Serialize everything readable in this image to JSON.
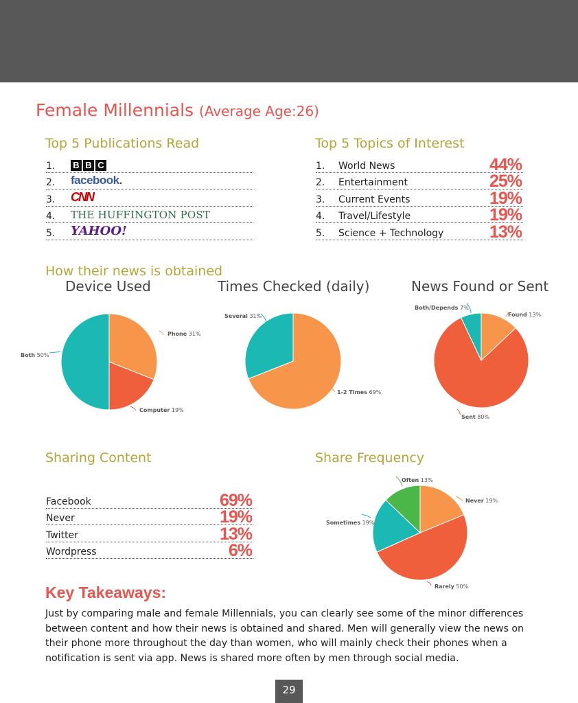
{
  "title": {
    "main": "Female Millennials",
    "sub": "(Average Age:26)"
  },
  "publications": {
    "heading": "Top 5 Publications Read",
    "items": [
      {
        "num": "1.",
        "logo_text": "BBC"
      },
      {
        "num": "2.",
        "logo_text": "facebook."
      },
      {
        "num": "3.",
        "logo_text": "CNN"
      },
      {
        "num": "4.",
        "logo_text": "THE HUFFINGTON POST"
      },
      {
        "num": "5.",
        "logo_text": "YAHOO!"
      }
    ]
  },
  "topics": {
    "heading": "Top 5 Topics of Interest",
    "items": [
      {
        "num": "1.",
        "label": "World News",
        "pct": "44%"
      },
      {
        "num": "2.",
        "label": "Entertainment",
        "pct": "25%"
      },
      {
        "num": "3.",
        "label": "Current Events",
        "pct": "19%"
      },
      {
        "num": "4.",
        "label": "Travel/Lifestyle",
        "pct": "19%"
      },
      {
        "num": "5.",
        "label": "Science + Technology",
        "pct": "13%"
      }
    ]
  },
  "news_heading": "How their news is obtained",
  "sharing": {
    "heading": "Sharing Content",
    "items": [
      {
        "label": "Facebook",
        "pct": "69%"
      },
      {
        "label": "Never",
        "pct": "19%"
      },
      {
        "label": "Twitter",
        "pct": "13%"
      },
      {
        "label": "Wordpress",
        "pct": "6%"
      }
    ]
  },
  "share_frequency_heading": "Share Frequency",
  "colors": {
    "orange": "#f7964a",
    "red": "#f05f3b",
    "teal": "#1bb8b4",
    "green": "#4bb748",
    "accent": "#e8554e",
    "olive": "#b5a536"
  },
  "chart_data": [
    {
      "type": "pie",
      "title": "Device Used",
      "slices": [
        {
          "label": "Phone",
          "value": 31,
          "text": "31%"
        },
        {
          "label": "Computer",
          "value": 19,
          "text": "19%"
        },
        {
          "label": "Both",
          "value": 50,
          "text": "50%"
        }
      ]
    },
    {
      "type": "pie",
      "title": "Times Checked (daily)",
      "slices": [
        {
          "label": "1-2 Times",
          "value": 69,
          "text": "69%"
        },
        {
          "label": "Several",
          "value": 31,
          "text": "31%"
        }
      ]
    },
    {
      "type": "pie",
      "title": "News Found or Sent",
      "slices": [
        {
          "label": "Found",
          "value": 13,
          "text": "13%"
        },
        {
          "label": "Sent",
          "value": 80,
          "text": "80%"
        },
        {
          "label": "Both/Depends",
          "value": 7,
          "text": "7%"
        }
      ]
    },
    {
      "type": "pie",
      "title": "",
      "slices": [
        {
          "label": "Never",
          "value": 19,
          "text": "19%"
        },
        {
          "label": "Rarely",
          "value": 50,
          "text": "50%"
        },
        {
          "label": "Sometimes",
          "value": 19,
          "text": "19%"
        },
        {
          "label": "Often",
          "value": 13,
          "text": "13%"
        }
      ]
    }
  ],
  "key_takeaways": {
    "heading": "Key Takeaways:",
    "text": "Just by comparing male and female Millennials, you can clearly see some of the minor differences between content and how their news is obtained and shared.  Men will generally view the news on their phone more throughout the day than women, who will mainly check their phones when a notification is sent via app.  News is shared more often by men through social media."
  },
  "page_number": "29"
}
